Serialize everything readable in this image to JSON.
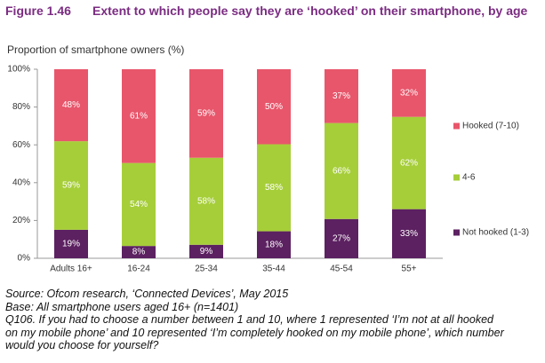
{
  "chart_data": {
    "type": "bar",
    "stack": "percent",
    "figure_label": "Figure 1.46",
    "title": "Extent to which people say they are ‘hooked’ on their smartphone, by age",
    "ylabel": "Proportion of smartphone owners (%)",
    "categories": [
      "Adults 16+",
      "16-24",
      "25-34",
      "35-44",
      "45-54",
      "55+"
    ],
    "series": [
      {
        "name": "Not hooked (1-3)",
        "color": "#5c2161",
        "values": [
          19,
          8,
          9,
          18,
          27,
          33
        ],
        "value_labels": [
          "19%",
          "8%",
          "9%",
          "18%",
          "27%",
          "33%"
        ]
      },
      {
        "name": "4-6",
        "color": "#a6ce39",
        "values": [
          59,
          54,
          58,
          58,
          66,
          62
        ],
        "value_labels": [
          "59%",
          "54%",
          "58%",
          "58%",
          "66%",
          "62%"
        ]
      },
      {
        "name": "Hooked (7-10)",
        "color": "#e8566b",
        "values": [
          48,
          61,
          59,
          50,
          37,
          32
        ],
        "value_labels": [
          "48%",
          "61%",
          "59%",
          "50%",
          "37%",
          "32%"
        ]
      }
    ],
    "ylim": [
      0,
      100
    ],
    "yticks": [
      {
        "value": 0,
        "label": "0%"
      },
      {
        "value": 20,
        "label": "20%"
      },
      {
        "value": 40,
        "label": "40%"
      },
      {
        "value": 60,
        "label": "60%"
      },
      {
        "value": 80,
        "label": "80%"
      },
      {
        "value": 100,
        "label": "100%"
      }
    ],
    "grid": false,
    "legend": "right",
    "notes": [
      "Source: Ofcom research, ‘Connected Devices’, May 2015",
      "Base: All smartphone users aged 16+ (n=1401)",
      "Q106. If you had to choose a number between 1 and 10, where 1 represented ‘I’m not at all hooked",
      "on my mobile phone’ and 10 represented ‘I’m completely hooked on my mobile phone’, which number",
      "would you choose for yourself?"
    ]
  }
}
